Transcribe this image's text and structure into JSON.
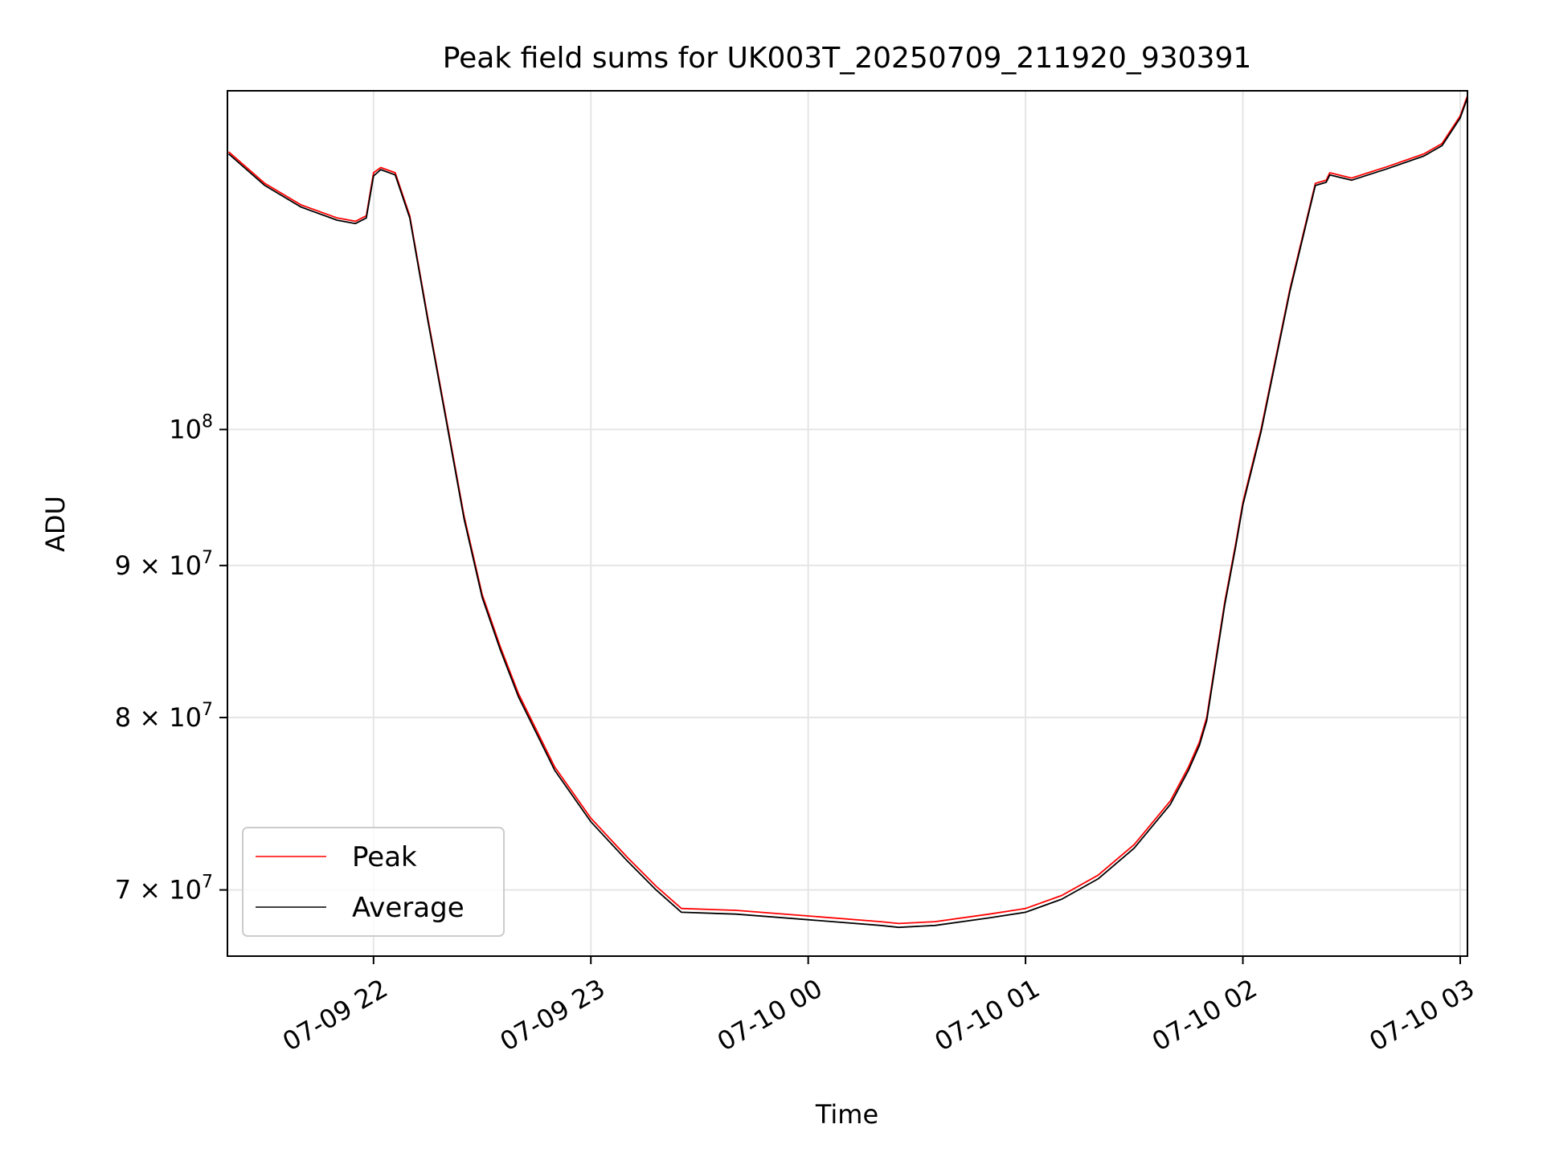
{
  "chart_data": {
    "type": "line",
    "title": "Peak field sums for UK003T_20250709_211920_930391",
    "xlabel": "Time",
    "ylabel": "ADU",
    "y_scale": "log",
    "x_range": [
      "2025-07-09 21:19:40",
      "2025-07-10 03:02:00"
    ],
    "ylim": [
      66500000,
      130000000
    ],
    "x_ticks": [
      {
        "t": "2025-07-09 22:00",
        "label": "07-09 22"
      },
      {
        "t": "2025-07-09 23:00",
        "label": "07-09 23"
      },
      {
        "t": "2025-07-10 00:00",
        "label": "07-10 00"
      },
      {
        "t": "2025-07-10 01:00",
        "label": "07-10 01"
      },
      {
        "t": "2025-07-10 02:00",
        "label": "07-10 02"
      },
      {
        "t": "2025-07-10 03:00",
        "label": "07-10 03"
      }
    ],
    "y_ticks": [
      {
        "v": 70000000,
        "base": "7 × 10",
        "exp": "7"
      },
      {
        "v": 80000000,
        "base": "8 × 10",
        "exp": "7"
      },
      {
        "v": 90000000,
        "base": "9 × 10",
        "exp": "7"
      },
      {
        "v": 100000000,
        "base": "10",
        "exp": "8"
      }
    ],
    "grid": true,
    "legend_position": "lower-left",
    "series": [
      {
        "name": "Peak",
        "color": "#ff0000",
        "x": [
          "2025-07-09 21:20",
          "2025-07-09 21:30",
          "2025-07-09 21:40",
          "2025-07-09 21:50",
          "2025-07-09 21:55",
          "2025-07-09 21:58",
          "2025-07-09 22:00",
          "2025-07-09 22:02",
          "2025-07-09 22:06",
          "2025-07-09 22:10",
          "2025-07-09 22:15",
          "2025-07-09 22:20",
          "2025-07-09 22:25",
          "2025-07-09 22:30",
          "2025-07-09 22:35",
          "2025-07-09 22:40",
          "2025-07-09 22:50",
          "2025-07-09 23:00",
          "2025-07-09 23:10",
          "2025-07-09 23:18",
          "2025-07-09 23:25",
          "2025-07-09 23:40",
          "2025-07-10 00:00",
          "2025-07-10 00:20",
          "2025-07-10 00:25",
          "2025-07-10 00:35",
          "2025-07-10 00:50",
          "2025-07-10 01:00",
          "2025-07-10 01:10",
          "2025-07-10 01:20",
          "2025-07-10 01:30",
          "2025-07-10 01:40",
          "2025-07-10 01:45",
          "2025-07-10 01:48",
          "2025-07-10 01:50",
          "2025-07-10 01:55",
          "2025-07-10 01:58",
          "2025-07-10 02:00",
          "2025-07-10 02:05",
          "2025-07-10 02:13",
          "2025-07-10 02:20",
          "2025-07-10 02:23",
          "2025-07-10 02:24",
          "2025-07-10 02:30",
          "2025-07-10 02:40",
          "2025-07-10 02:50",
          "2025-07-10 02:55",
          "2025-07-10 03:00",
          "2025-07-10 03:02"
        ],
        "y": [
          124000000,
          121000000,
          119000000,
          117800000,
          117500000,
          118000000,
          122000000,
          122500000,
          122000000,
          118000000,
          109000000,
          101000000,
          93500000,
          88000000,
          84500000,
          81500000,
          77000000,
          74000000,
          71800000,
          70200000,
          69000000,
          68900000,
          68600000,
          68300000,
          68200000,
          68300000,
          68700000,
          69000000,
          69700000,
          70800000,
          72500000,
          75000000,
          77000000,
          78500000,
          80000000,
          87500000,
          91500000,
          94500000,
          100000000,
          111500000,
          121000000,
          121300000,
          122000000,
          121500000,
          122600000,
          123800000,
          124800000,
          127500000,
          129500000
        ]
      },
      {
        "name": "Average",
        "color": "#000000",
        "x": [
          "2025-07-09 21:20",
          "2025-07-09 21:30",
          "2025-07-09 21:40",
          "2025-07-09 21:50",
          "2025-07-09 21:55",
          "2025-07-09 21:58",
          "2025-07-09 22:00",
          "2025-07-09 22:02",
          "2025-07-09 22:06",
          "2025-07-09 22:10",
          "2025-07-09 22:15",
          "2025-07-09 22:20",
          "2025-07-09 22:25",
          "2025-07-09 22:30",
          "2025-07-09 22:35",
          "2025-07-09 22:40",
          "2025-07-09 22:50",
          "2025-07-09 23:00",
          "2025-07-09 23:10",
          "2025-07-09 23:18",
          "2025-07-09 23:25",
          "2025-07-09 23:40",
          "2025-07-10 00:00",
          "2025-07-10 00:20",
          "2025-07-10 00:25",
          "2025-07-10 00:35",
          "2025-07-10 00:50",
          "2025-07-10 01:00",
          "2025-07-10 01:10",
          "2025-07-10 01:20",
          "2025-07-10 01:30",
          "2025-07-10 01:40",
          "2025-07-10 01:45",
          "2025-07-10 01:48",
          "2025-07-10 01:50",
          "2025-07-10 01:55",
          "2025-07-10 01:58",
          "2025-07-10 02:00",
          "2025-07-10 02:05",
          "2025-07-10 02:13",
          "2025-07-10 02:20",
          "2025-07-10 02:23",
          "2025-07-10 02:24",
          "2025-07-10 02:30",
          "2025-07-10 02:40",
          "2025-07-10 02:50",
          "2025-07-10 02:55",
          "2025-07-10 03:00",
          "2025-07-10 03:02"
        ],
        "y": [
          123800000,
          120800000,
          118800000,
          117600000,
          117300000,
          117800000,
          121700000,
          122300000,
          121800000,
          117800000,
          108800000,
          100800000,
          93300000,
          87800000,
          84300000,
          81300000,
          76800000,
          73800000,
          71600000,
          70000000,
          68800000,
          68700000,
          68400000,
          68100000,
          68000000,
          68100000,
          68500000,
          68800000,
          69500000,
          70600000,
          72300000,
          74800000,
          76800000,
          78300000,
          79800000,
          87300000,
          91300000,
          94300000,
          99800000,
          111300000,
          120800000,
          121100000,
          121800000,
          121300000,
          122400000,
          123600000,
          124600000,
          127300000,
          129300000
        ]
      }
    ]
  }
}
